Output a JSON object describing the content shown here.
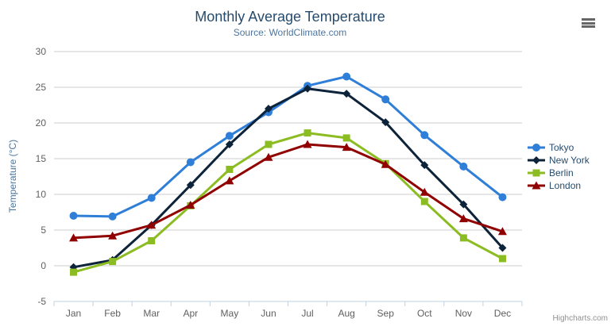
{
  "chart": {
    "credits": "Highcharts.com",
    "export_button_icon": "hamburger-menu-icon"
  },
  "chart_data": {
    "type": "line",
    "title": "Monthly Average Temperature",
    "subtitle": "Source: WorldClimate.com",
    "categories": [
      "Jan",
      "Feb",
      "Mar",
      "Apr",
      "May",
      "Jun",
      "Jul",
      "Aug",
      "Sep",
      "Oct",
      "Nov",
      "Dec"
    ],
    "xlabel": "",
    "ylabel": "Temperature (°C)",
    "ylim": [
      -5,
      30
    ],
    "ytick_interval": 5,
    "yticks": [
      -5,
      0,
      5,
      10,
      15,
      20,
      25,
      30
    ],
    "grid": true,
    "legend_position": "right",
    "series": [
      {
        "name": "Tokyo",
        "color": "#2f7ed8",
        "marker": "circle",
        "values": [
          7.0,
          6.9,
          9.5,
          14.5,
          18.2,
          21.5,
          25.2,
          26.5,
          23.3,
          18.3,
          13.9,
          9.6
        ]
      },
      {
        "name": "New York",
        "color": "#0d233a",
        "marker": "diamond",
        "values": [
          -0.2,
          0.8,
          5.7,
          11.3,
          17.0,
          22.0,
          24.8,
          24.1,
          20.1,
          14.1,
          8.6,
          2.5
        ]
      },
      {
        "name": "Berlin",
        "color": "#8bbc21",
        "marker": "square",
        "values": [
          -0.9,
          0.6,
          3.5,
          8.4,
          13.5,
          17.0,
          18.6,
          17.9,
          14.3,
          9.0,
          3.9,
          1.0
        ]
      },
      {
        "name": "London",
        "color": "#910000",
        "marker": "triangle",
        "values": [
          3.9,
          4.2,
          5.7,
          8.5,
          11.9,
          15.2,
          17.0,
          16.6,
          14.2,
          10.3,
          6.6,
          4.8
        ]
      }
    ],
    "styles": {
      "title_color": "#274b6d",
      "subtitle_color": "#4d759e",
      "axis_title_color": "#4d759e",
      "tick_label_color": "#606060",
      "gridline_color": "#cccccc",
      "axis_line_color": "#c0d0e0",
      "legend_text_color": "#274b6d",
      "credits_color": "#909090",
      "menu_icon_color": "#666666"
    }
  }
}
